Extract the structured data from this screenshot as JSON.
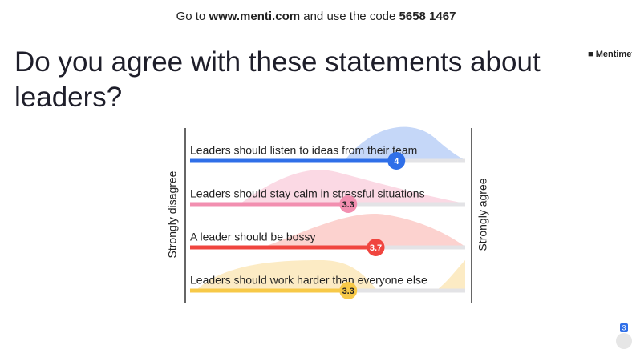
{
  "header": {
    "prefix": "Go to",
    "url": "www.menti.com",
    "middle": "and use the code",
    "code": "5658 1467"
  },
  "brand": "Mentimeter",
  "title": "Do you agree with these statements about leaders?",
  "scale": {
    "min_label": "Strongly disagree",
    "max_label": "Strongly agree",
    "range": [
      1,
      5
    ]
  },
  "items": [
    {
      "label": "Leaders should listen to ideas from their team",
      "value": 4,
      "color": "#2f6fe8"
    },
    {
      "label": "Leaders should stay calm in stressful situations",
      "value": 3.3,
      "color": "#f28fb0"
    },
    {
      "label": "A leader should be bossy",
      "value": 3.7,
      "color": "#f0453f"
    },
    {
      "label": "Leaders should work harder than everyone else",
      "value": 3.3,
      "color": "#f7c948"
    }
  ],
  "participants": 3
}
